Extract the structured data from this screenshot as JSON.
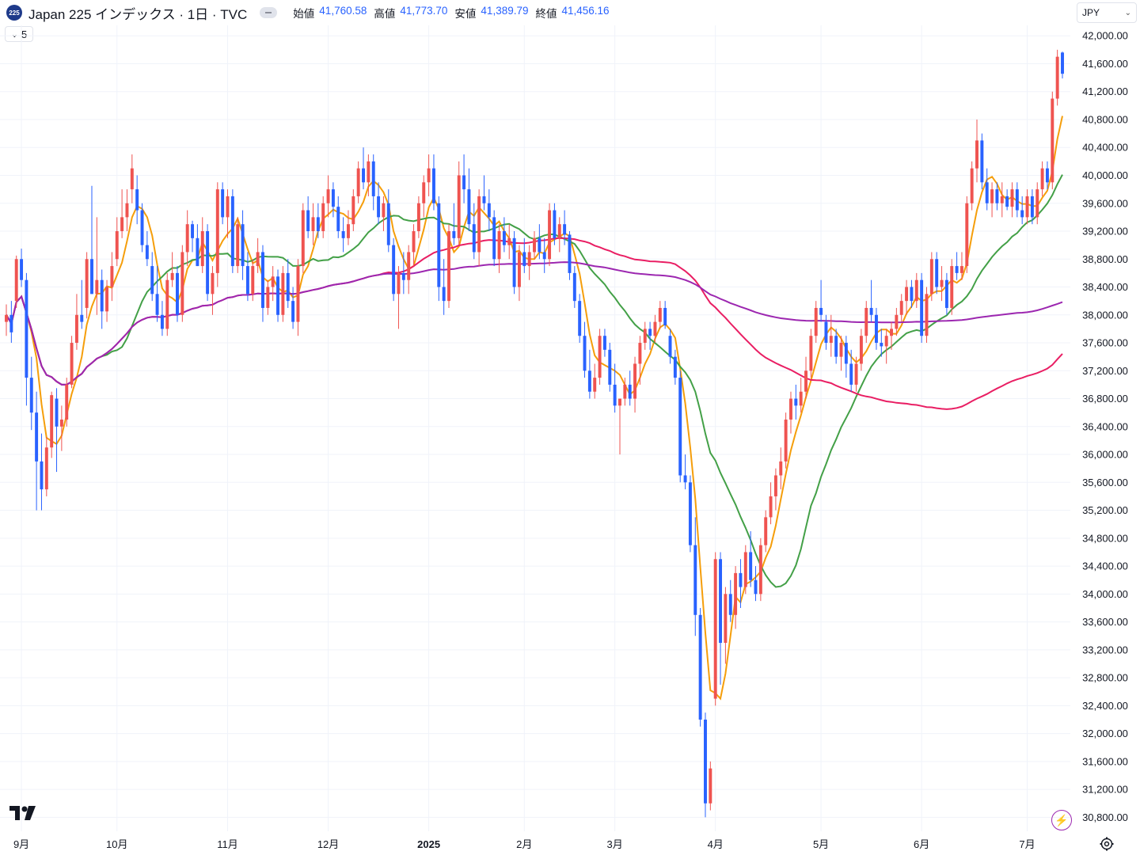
{
  "header": {
    "logo": "225",
    "title": "Japan 225 インデックス · 1日 · TVC",
    "ohlc": [
      {
        "key": "始値",
        "value": "41,760.58"
      },
      {
        "key": "高値",
        "value": "41,773.70"
      },
      {
        "key": "安値",
        "value": "41,389.79"
      },
      {
        "key": "終値",
        "value": "41,456.16"
      }
    ]
  },
  "currency": "JPY",
  "indicators_toggle": {
    "icon": "chevron-down-icon",
    "count": "5"
  },
  "icons": {
    "logo": "tradingview-logo-icon",
    "bolt": "lightning-icon",
    "settings": "settings-icon"
  },
  "colors": {
    "up": "#ef5350",
    "down": "#2962ff",
    "ma_orange": "#f59e0b",
    "ma_green": "#43a047",
    "ma_magenta": "#e91e63",
    "ma_purple": "#9c27b0",
    "grid": "#f0f3fa"
  },
  "chart_data": {
    "type": "candlestick",
    "ylim": [
      30600,
      42150
    ],
    "y_ticks": [
      30800,
      31200,
      31600,
      32000,
      32400,
      32800,
      33200,
      33600,
      34000,
      34400,
      34800,
      35200,
      35600,
      36000,
      36400,
      36800,
      37200,
      37600,
      38000,
      38400,
      38800,
      39200,
      39600,
      40000,
      40400,
      40800,
      41200,
      41600,
      42000
    ],
    "y_tick_labels": [
      "30,800.00",
      "31,200.00",
      "31,600.00",
      "32,000.00",
      "32,400.00",
      "32,800.00",
      "33,200.00",
      "33,600.00",
      "34,000.00",
      "34,400.00",
      "34,800.00",
      "35,200.00",
      "35,600.00",
      "36,000.00",
      "36,400.00",
      "36,800.00",
      "37,200.00",
      "37,600.00",
      "38,000.00",
      "38,400.00",
      "38,800.00",
      "39,200.00",
      "39,600.00",
      "40,000.00",
      "40,400.00",
      "40,800.00",
      "41,200.00",
      "41,600.00",
      "42,000.00"
    ],
    "x_labels": [
      {
        "label": "9月",
        "i": 3
      },
      {
        "label": "10月",
        "i": 22
      },
      {
        "label": "11月",
        "i": 44
      },
      {
        "label": "12月",
        "i": 64
      },
      {
        "label": "2025",
        "i": 84
      },
      {
        "label": "2月",
        "i": 103
      },
      {
        "label": "3月",
        "i": 121
      },
      {
        "label": "4月",
        "i": 141
      },
      {
        "label": "5月",
        "i": 162
      },
      {
        "label": "6月",
        "i": 182
      },
      {
        "label": "7月",
        "i": 203
      }
    ],
    "candles": [
      [
        37900,
        38150,
        37700,
        38000
      ],
      [
        38000,
        38200,
        37600,
        37750
      ],
      [
        38200,
        38850,
        38100,
        38800
      ],
      [
        38800,
        38950,
        38400,
        38500
      ],
      [
        38500,
        38600,
        36700,
        37100
      ],
      [
        37100,
        37400,
        36350,
        36600
      ],
      [
        36600,
        36900,
        35200,
        35900
      ],
      [
        35900,
        36300,
        35200,
        35500
      ],
      [
        35500,
        36250,
        35400,
        36100
      ],
      [
        36100,
        36900,
        35950,
        36850
      ],
      [
        36800,
        36950,
        35750,
        36400
      ],
      [
        36400,
        36700,
        36050,
        36500
      ],
      [
        36500,
        37100,
        36400,
        37000
      ],
      [
        37000,
        37700,
        36950,
        37600
      ],
      [
        37600,
        38300,
        37500,
        38000
      ],
      [
        38000,
        38500,
        37800,
        37900
      ],
      [
        38100,
        38900,
        37950,
        38800
      ],
      [
        38800,
        39850,
        38300,
        38300
      ],
      [
        38300,
        39400,
        38000,
        38500
      ],
      [
        38500,
        38650,
        37800,
        38050
      ],
      [
        38050,
        38500,
        37900,
        38400
      ],
      [
        38400,
        38900,
        38200,
        38700
      ],
      [
        38800,
        39400,
        38700,
        39200
      ],
      [
        39200,
        39800,
        39100,
        39400
      ],
      [
        39400,
        39800,
        39200,
        39600
      ],
      [
        39800,
        40300,
        39600,
        40100
      ],
      [
        39800,
        40000,
        39300,
        39500
      ],
      [
        39500,
        39600,
        38900,
        39000
      ],
      [
        39000,
        39200,
        38700,
        38800
      ],
      [
        38700,
        38900,
        38200,
        38300
      ],
      [
        38300,
        38700,
        37900,
        38000
      ],
      [
        38000,
        38200,
        37700,
        37800
      ],
      [
        37800,
        38600,
        37700,
        38500
      ],
      [
        38500,
        38900,
        38400,
        38600
      ],
      [
        38600,
        38700,
        37900,
        38000
      ],
      [
        38000,
        39000,
        37900,
        38900
      ],
      [
        38900,
        39500,
        38700,
        39300
      ],
      [
        39300,
        39350,
        38900,
        39100
      ],
      [
        39100,
        39300,
        38700,
        38700
      ],
      [
        38700,
        39400,
        38600,
        39200
      ],
      [
        39200,
        39300,
        38200,
        38300
      ],
      [
        38300,
        38700,
        38000,
        38600
      ],
      [
        38600,
        39900,
        38400,
        39800
      ],
      [
        39800,
        39900,
        39300,
        39400
      ],
      [
        39400,
        39800,
        39100,
        39700
      ],
      [
        39700,
        39800,
        38600,
        38700
      ],
      [
        38700,
        39400,
        38600,
        39300
      ],
      [
        39300,
        39500,
        38500,
        38700
      ],
      [
        38700,
        38900,
        38200,
        38300
      ],
      [
        38300,
        38800,
        38200,
        38700
      ],
      [
        38700,
        39100,
        38600,
        38900
      ],
      [
        38900,
        39000,
        37900,
        38100
      ],
      [
        38100,
        38500,
        38000,
        38400
      ],
      [
        38400,
        38700,
        38200,
        38550
      ],
      [
        38550,
        38650,
        37900,
        38000
      ],
      [
        38000,
        38700,
        37900,
        38600
      ],
      [
        38600,
        38800,
        38100,
        38200
      ],
      [
        38200,
        38400,
        37800,
        37900
      ],
      [
        37900,
        38800,
        37700,
        38700
      ],
      [
        38700,
        39600,
        38600,
        39500
      ],
      [
        39500,
        39700,
        39100,
        39200
      ],
      [
        39200,
        39600,
        39000,
        39400
      ],
      [
        39400,
        39600,
        39100,
        39200
      ],
      [
        39200,
        39700,
        39100,
        39600
      ],
      [
        39600,
        40000,
        39400,
        39800
      ],
      [
        39800,
        39900,
        39400,
        39550
      ],
      [
        39550,
        39700,
        39100,
        39200
      ],
      [
        39200,
        39400,
        38900,
        39100
      ],
      [
        39100,
        39500,
        39000,
        39300
      ],
      [
        39300,
        39800,
        39200,
        39700
      ],
      [
        39700,
        40200,
        39600,
        40100
      ],
      [
        40100,
        40400,
        39800,
        39900
      ],
      [
        39900,
        40300,
        39700,
        40200
      ],
      [
        40200,
        40300,
        39500,
        39700
      ],
      [
        39700,
        39900,
        39300,
        39400
      ],
      [
        39400,
        39700,
        39200,
        39600
      ],
      [
        39600,
        39800,
        38900,
        39000
      ],
      [
        39000,
        39100,
        38200,
        38300
      ],
      [
        38300,
        38700,
        37800,
        38600
      ],
      [
        38600,
        38900,
        38300,
        38500
      ],
      [
        38500,
        39000,
        38300,
        38900
      ],
      [
        38900,
        39300,
        38700,
        39200
      ],
      [
        39200,
        39700,
        39100,
        39600
      ],
      [
        39600,
        40000,
        39400,
        39900
      ],
      [
        39900,
        40300,
        39700,
        40100
      ],
      [
        40100,
        40300,
        39500,
        39600
      ],
      [
        39600,
        39700,
        38200,
        38400
      ],
      [
        38400,
        38800,
        38000,
        38200
      ],
      [
        38200,
        39300,
        38100,
        39200
      ],
      [
        39200,
        39600,
        39000,
        39100
      ],
      [
        39100,
        40200,
        39000,
        40000
      ],
      [
        40000,
        40300,
        39600,
        39800
      ],
      [
        39800,
        40100,
        39200,
        39300
      ],
      [
        39300,
        39600,
        38800,
        38900
      ],
      [
        38900,
        39800,
        38700,
        39700
      ],
      [
        39700,
        40000,
        39500,
        39600
      ],
      [
        39600,
        39800,
        39200,
        39400
      ],
      [
        39400,
        39500,
        38700,
        38800
      ],
      [
        38800,
        39300,
        38600,
        39200
      ],
      [
        39200,
        39400,
        38900,
        39000
      ],
      [
        39000,
        39300,
        38800,
        39100
      ],
      [
        39100,
        39200,
        38300,
        38400
      ],
      [
        38400,
        39000,
        38200,
        38900
      ],
      [
        38900,
        39100,
        38600,
        38700
      ],
      [
        38700,
        39000,
        38500,
        38900
      ],
      [
        38900,
        39200,
        38800,
        39100
      ],
      [
        39100,
        39300,
        38800,
        38900
      ],
      [
        38900,
        39100,
        38600,
        38800
      ],
      [
        38800,
        39600,
        38700,
        39500
      ],
      [
        39500,
        39600,
        39000,
        39100
      ],
      [
        39100,
        39400,
        38900,
        39300
      ],
      [
        39300,
        39500,
        39000,
        39150
      ],
      [
        39150,
        39200,
        38500,
        38600
      ],
      [
        38600,
        38700,
        38100,
        38200
      ],
      [
        38200,
        38300,
        37600,
        37700
      ],
      [
        37700,
        37900,
        37100,
        37200
      ],
      [
        37200,
        37500,
        36800,
        36900
      ],
      [
        36900,
        37300,
        36800,
        37100
      ],
      [
        37100,
        37800,
        37000,
        37700
      ],
      [
        37700,
        37800,
        37400,
        37500
      ],
      [
        37500,
        37600,
        36900,
        37000
      ],
      [
        37000,
        37300,
        36600,
        36700
      ],
      [
        36700,
        36800,
        36000,
        36800
      ],
      [
        36800,
        37100,
        36700,
        37000
      ],
      [
        37000,
        37200,
        36700,
        36800
      ],
      [
        36800,
        37400,
        36600,
        37300
      ],
      [
        37300,
        37700,
        37000,
        37600
      ],
      [
        37600,
        37900,
        37500,
        37800
      ],
      [
        37800,
        37900,
        37500,
        37700
      ],
      [
        37700,
        38000,
        37600,
        37900
      ],
      [
        37900,
        38200,
        37800,
        38100
      ],
      [
        38100,
        38200,
        37800,
        37850
      ],
      [
        37700,
        37800,
        37300,
        37400
      ],
      [
        37400,
        37500,
        37000,
        37100
      ],
      [
        37100,
        37200,
        35600,
        35700
      ],
      [
        35700,
        36000,
        35500,
        35600
      ],
      [
        35600,
        35700,
        34600,
        34700
      ],
      [
        34700,
        35100,
        33400,
        33700
      ],
      [
        33700,
        33800,
        32100,
        32200
      ],
      [
        32200,
        32300,
        30800,
        31000
      ],
      [
        31000,
        31600,
        30900,
        31500
      ],
      [
        32500,
        34600,
        32400,
        34500
      ],
      [
        34500,
        34600,
        32700,
        33300
      ],
      [
        33300,
        34100,
        33000,
        34000
      ],
      [
        34000,
        34200,
        33600,
        33700
      ],
      [
        33700,
        34400,
        33500,
        34300
      ],
      [
        34300,
        34500,
        33800,
        34100
      ],
      [
        34100,
        34700,
        34000,
        34600
      ],
      [
        34600,
        34900,
        34100,
        34200
      ],
      [
        34200,
        34400,
        33900,
        34000
      ],
      [
        34000,
        34800,
        33900,
        34700
      ],
      [
        34700,
        35200,
        34600,
        35100
      ],
      [
        35100,
        35600,
        35000,
        35400
      ],
      [
        35400,
        35800,
        35200,
        35700
      ],
      [
        35700,
        36100,
        35500,
        35900
      ],
      [
        35900,
        36600,
        35800,
        36500
      ],
      [
        36500,
        36900,
        36300,
        36800
      ],
      [
        36800,
        37000,
        36500,
        36700
      ],
      [
        36700,
        37100,
        36600,
        36900
      ],
      [
        36900,
        37400,
        36800,
        37200
      ],
      [
        37200,
        37800,
        37100,
        37700
      ],
      [
        37700,
        38200,
        37600,
        38100
      ],
      [
        38100,
        38500,
        37900,
        38000
      ],
      [
        37900,
        38000,
        37500,
        37600
      ],
      [
        37600,
        38000,
        37400,
        37700
      ],
      [
        37700,
        37800,
        37300,
        37400
      ],
      [
        37400,
        37700,
        37200,
        37600
      ],
      [
        37600,
        37700,
        37100,
        37300
      ],
      [
        37300,
        37500,
        36900,
        37000
      ],
      [
        37000,
        37400,
        36900,
        37300
      ],
      [
        37300,
        37800,
        37200,
        37700
      ],
      [
        37700,
        38200,
        37600,
        38100
      ],
      [
        38100,
        38500,
        37900,
        38000
      ],
      [
        38000,
        38100,
        37500,
        37600
      ],
      [
        37600,
        37800,
        37400,
        37550
      ],
      [
        37550,
        37800,
        37300,
        37700
      ],
      [
        37700,
        37900,
        37500,
        37800
      ],
      [
        37800,
        38100,
        37700,
        38000
      ],
      [
        38000,
        38300,
        37900,
        38200
      ],
      [
        38200,
        38500,
        38000,
        38400
      ],
      [
        38400,
        38500,
        38100,
        38200
      ],
      [
        38200,
        38600,
        38100,
        38500
      ],
      [
        38500,
        38600,
        37600,
        37700
      ],
      [
        37700,
        38400,
        37600,
        38300
      ],
      [
        38300,
        38900,
        38200,
        38800
      ],
      [
        38800,
        38900,
        38300,
        38400
      ],
      [
        38400,
        38700,
        38200,
        38500
      ],
      [
        38500,
        38600,
        38000,
        38100
      ],
      [
        38100,
        38800,
        38000,
        38700
      ],
      [
        38700,
        38900,
        38500,
        38600
      ],
      [
        38600,
        38900,
        38500,
        38700
      ],
      [
        38700,
        39700,
        38600,
        39600
      ],
      [
        39600,
        40200,
        39500,
        40100
      ],
      [
        40100,
        40800,
        39900,
        40500
      ],
      [
        40500,
        40600,
        39800,
        39900
      ],
      [
        39900,
        40100,
        39500,
        39600
      ],
      [
        39600,
        39900,
        39400,
        39800
      ],
      [
        39800,
        39900,
        39500,
        39600
      ],
      [
        39600,
        39900,
        39400,
        39700
      ],
      [
        39700,
        39800,
        39500,
        39550
      ],
      [
        39550,
        39900,
        39400,
        39800
      ],
      [
        39800,
        39900,
        39400,
        39500
      ],
      [
        39500,
        39700,
        39300,
        39400
      ],
      [
        39400,
        39800,
        39300,
        39700
      ],
      [
        39700,
        39800,
        39300,
        39400
      ],
      [
        39400,
        39900,
        39300,
        39800
      ],
      [
        39800,
        40200,
        39700,
        40100
      ],
      [
        40100,
        40200,
        39800,
        39900
      ],
      [
        39900,
        41200,
        39800,
        41100
      ],
      [
        41100,
        41800,
        41000,
        41700
      ],
      [
        41760,
        41773,
        41389,
        41456
      ]
    ],
    "ma_periods": [
      5,
      20,
      75,
      200
    ]
  }
}
